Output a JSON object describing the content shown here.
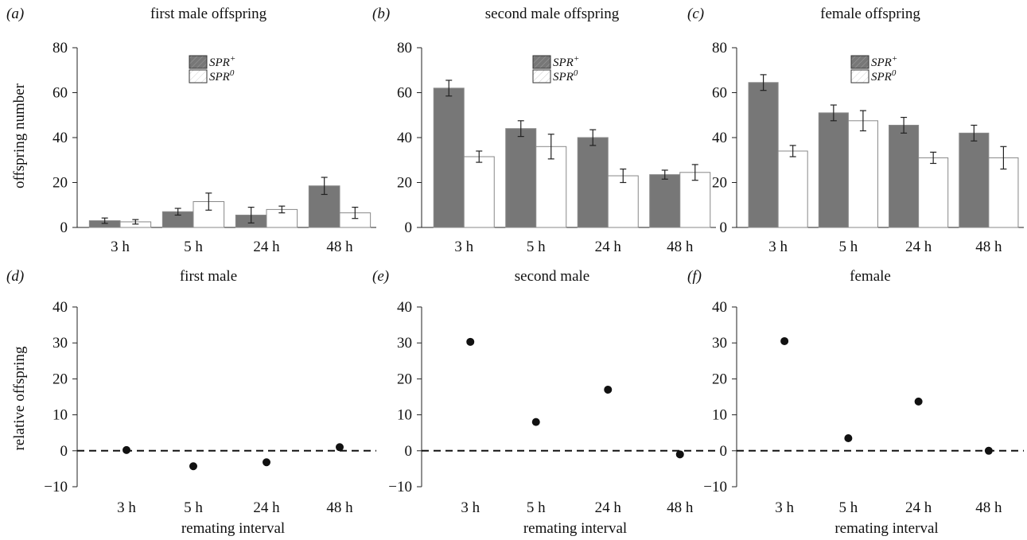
{
  "figure": {
    "ylabel_top": "offspring number",
    "ylabel_bottom": "relative offspring",
    "xlabel_bottom": "remating interval",
    "colors": {
      "spr_plus": "#777777",
      "spr_zero": "#ffffff",
      "outline": "#888888",
      "point": "#111111"
    }
  },
  "chart_data": [
    {
      "panel": "(a)",
      "type": "bar",
      "title": "first male offspring",
      "categories": [
        "3 h",
        "5 h",
        "24 h",
        "48 h"
      ],
      "ylim": [
        0,
        80
      ],
      "yticks": [
        0,
        20,
        40,
        60,
        80
      ],
      "ylabel": "offspring number",
      "legend": {
        "items": [
          "SPR+",
          "SPR0"
        ],
        "position": "top-center"
      },
      "series": [
        {
          "name": "SPR+",
          "values": [
            3,
            7,
            5.5,
            18.5
          ],
          "errors": [
            1.2,
            1.5,
            3.5,
            3.8
          ]
        },
        {
          "name": "SPR0",
          "values": [
            2.5,
            11.5,
            8,
            6.5
          ],
          "errors": [
            1,
            3.8,
            1.5,
            2.5
          ]
        }
      ]
    },
    {
      "panel": "(b)",
      "type": "bar",
      "title": "second male offspring",
      "categories": [
        "3 h",
        "5 h",
        "24 h",
        "48 h"
      ],
      "ylim": [
        0,
        80
      ],
      "yticks": [
        0,
        20,
        40,
        60,
        80
      ],
      "legend": {
        "items": [
          "SPR+",
          "SPR0"
        ],
        "position": "top-center"
      },
      "series": [
        {
          "name": "SPR+",
          "values": [
            62,
            44,
            40,
            23.5
          ],
          "errors": [
            3.5,
            3.5,
            3.5,
            2
          ]
        },
        {
          "name": "SPR0",
          "values": [
            31.5,
            36,
            23,
            24.5
          ],
          "errors": [
            2.5,
            5.5,
            3,
            3.5
          ]
        }
      ]
    },
    {
      "panel": "(c)",
      "type": "bar",
      "title": "female offspring",
      "categories": [
        "3 h",
        "5 h",
        "24 h",
        "48 h"
      ],
      "ylim": [
        0,
        80
      ],
      "yticks": [
        0,
        20,
        40,
        60,
        80
      ],
      "legend": {
        "items": [
          "SPR+",
          "SPR0"
        ],
        "position": "top-center"
      },
      "series": [
        {
          "name": "SPR+",
          "values": [
            64.5,
            51,
            45.5,
            42
          ],
          "errors": [
            3.5,
            3.5,
            3.5,
            3.5
          ]
        },
        {
          "name": "SPR0",
          "values": [
            34,
            47.5,
            31,
            31
          ],
          "errors": [
            2.5,
            4.5,
            2.5,
            5
          ]
        }
      ]
    },
    {
      "panel": "(d)",
      "type": "scatter",
      "title": "first male",
      "categories": [
        "3 h",
        "5 h",
        "24 h",
        "48 h"
      ],
      "ylim": [
        -10,
        40
      ],
      "yticks": [
        -10,
        0,
        10,
        20,
        30,
        40
      ],
      "ylabel": "relative offspring",
      "xlabel": "remating interval",
      "reference_line": 0,
      "values": [
        0.2,
        -4.3,
        -3.2,
        1
      ]
    },
    {
      "panel": "(e)",
      "type": "scatter",
      "title": "second male",
      "categories": [
        "3 h",
        "5 h",
        "24 h",
        "48 h"
      ],
      "ylim": [
        -10,
        40
      ],
      "yticks": [
        -10,
        0,
        10,
        20,
        30,
        40
      ],
      "xlabel": "remating interval",
      "reference_line": 0,
      "values": [
        30.3,
        8,
        17,
        -1
      ]
    },
    {
      "panel": "(f)",
      "type": "scatter",
      "title": "female",
      "categories": [
        "3 h",
        "5 h",
        "24 h",
        "48 h"
      ],
      "ylim": [
        -10,
        40
      ],
      "yticks": [
        -10,
        0,
        10,
        20,
        30,
        40
      ],
      "xlabel": "remating interval",
      "reference_line": 0,
      "values": [
        30.5,
        3.5,
        13.7,
        0
      ]
    }
  ]
}
